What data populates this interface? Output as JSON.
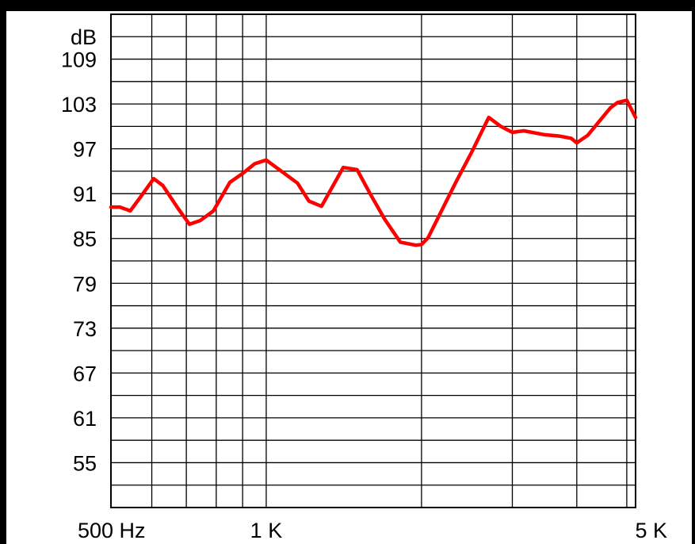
{
  "chart_data": {
    "type": "line",
    "title": "",
    "xlabel": "",
    "ylabel": "dB",
    "x_scale": "log",
    "xlim": [
      500,
      5200
    ],
    "ylim": [
      49,
      115
    ],
    "grid": true,
    "legend": "none",
    "y_ticks": [
      {
        "value": 109,
        "label": "109"
      },
      {
        "value": 103,
        "label": "103"
      },
      {
        "value": 97,
        "label": "97"
      },
      {
        "value": 91,
        "label": "91"
      },
      {
        "value": 85,
        "label": "85"
      },
      {
        "value": 79,
        "label": "79"
      },
      {
        "value": 73,
        "label": "73"
      },
      {
        "value": 67,
        "label": "67"
      },
      {
        "value": 61,
        "label": "61"
      },
      {
        "value": 55,
        "label": "55"
      }
    ],
    "x_ticks": [
      {
        "value": 500,
        "label": "500 Hz"
      },
      {
        "value": 1000,
        "label": "1 K"
      },
      {
        "value": 5000,
        "label": "5 K"
      }
    ],
    "x_gridlines": [
      500,
      600,
      700,
      800,
      900,
      1000,
      2000,
      3000,
      4000,
      5000
    ],
    "line_color": "#ff0000",
    "series": [
      {
        "x": [
          500,
          520,
          545,
          570,
          605,
          630,
          675,
          710,
          745,
          790,
          850,
          900,
          950,
          1000,
          1070,
          1150,
          1210,
          1280,
          1410,
          1500,
          1590,
          1700,
          1820,
          1950,
          2000,
          2060,
          2180,
          2330,
          2500,
          2700,
          2850,
          3000,
          3160,
          3450,
          3700,
          3900,
          4000,
          4200,
          4400,
          4650,
          4800,
          5000,
          5200
        ],
        "y": [
          89.2,
          89.2,
          88.7,
          90.5,
          93.0,
          92.1,
          89.0,
          86.9,
          87.4,
          88.7,
          92.5,
          93.7,
          95.0,
          95.5,
          94.0,
          92.4,
          90.0,
          89.3,
          94.5,
          94.2,
          91.0,
          87.5,
          84.5,
          84.1,
          84.2,
          85.1,
          88.5,
          92.5,
          96.5,
          101.2,
          100.0,
          99.2,
          99.4,
          98.9,
          98.7,
          98.4,
          97.8,
          98.8,
          100.5,
          102.5,
          103.2,
          103.5,
          101.2
        ]
      }
    ]
  }
}
